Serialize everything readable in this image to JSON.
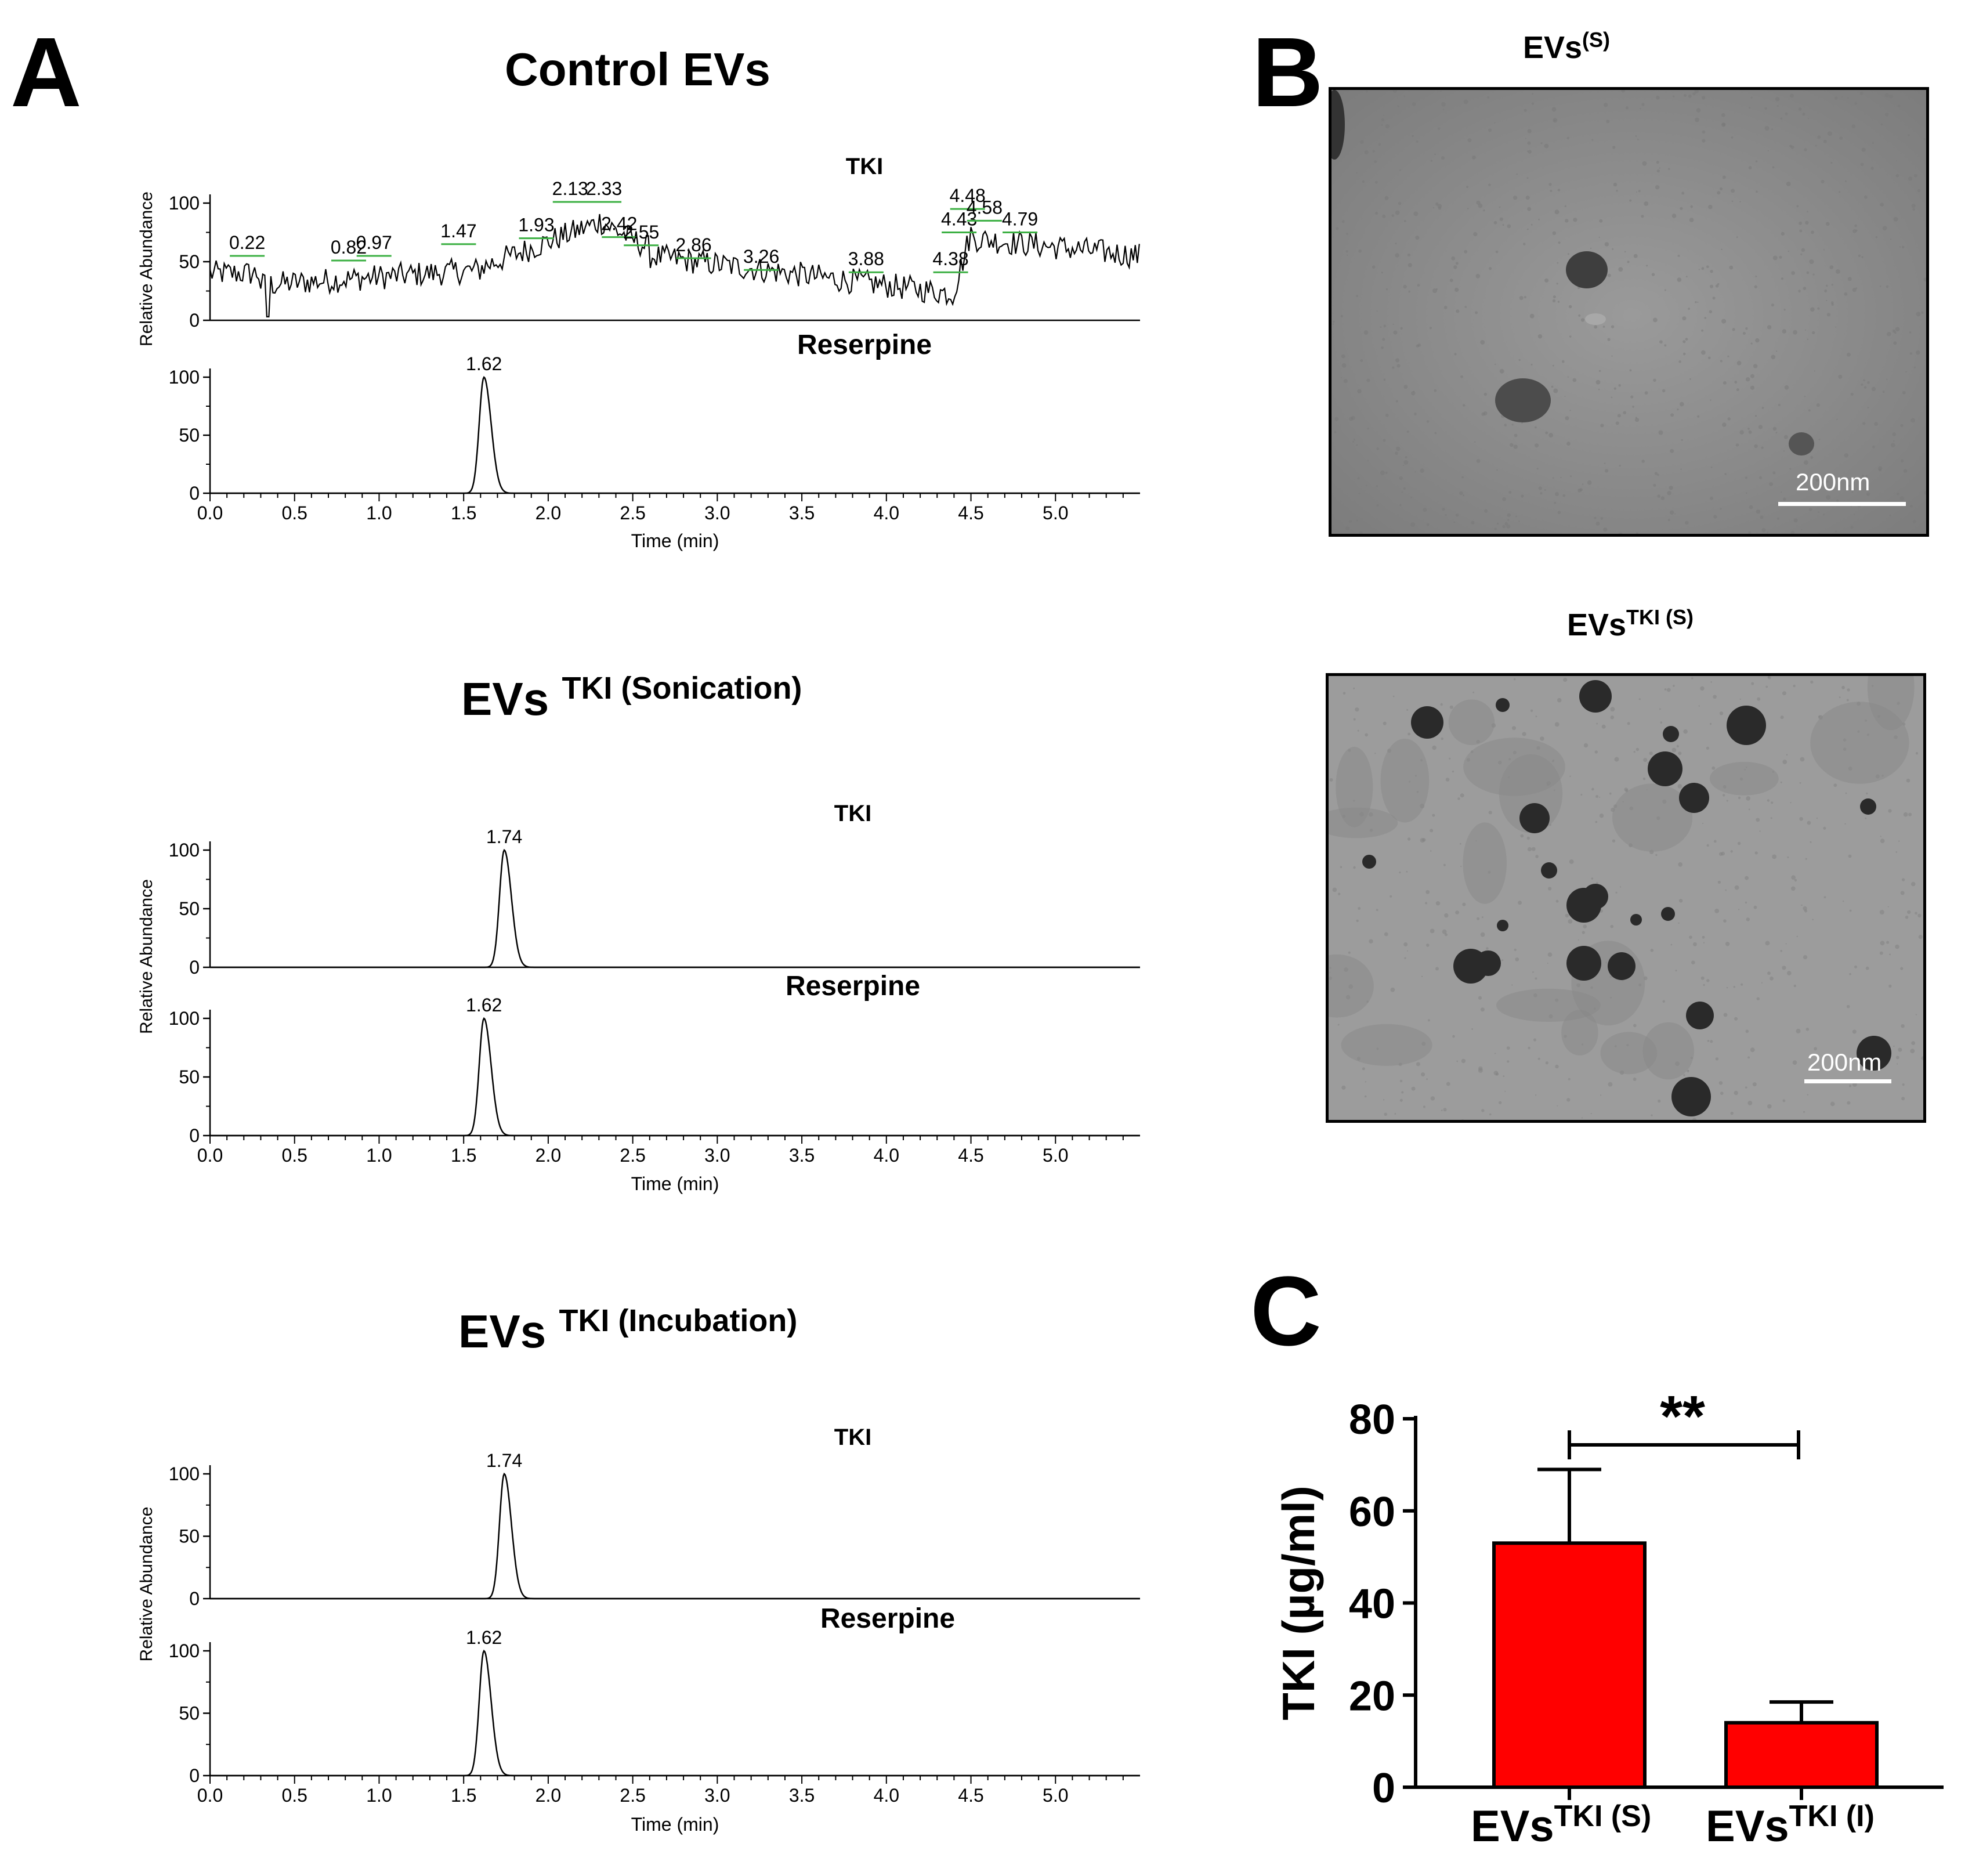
{
  "panels": {
    "a_letter": "A",
    "b_letter": "B",
    "c_letter": "C"
  },
  "panel_a": {
    "sections": [
      {
        "title": "Control EVs",
        "title_sup": "",
        "title_rest": "",
        "traces": [
          {
            "label": "TKI",
            "kind": "noisy",
            "peak_labels": [
              "0.22",
              "0.82",
              "0.97",
              "1.47",
              "1.93",
              "2.13",
              "2.33",
              "2.42",
              "2.55",
              "2.86",
              "3.26",
              "3.88",
              "4.38",
              "4.43",
              "4.48",
              "4.58",
              "4.79"
            ]
          },
          {
            "label": "Reserpine",
            "kind": "peak",
            "peak_rt": 1.62,
            "peak_label": "1.62"
          }
        ]
      },
      {
        "title": "EVs",
        "title_sup": "TKI (Sonication)",
        "traces": [
          {
            "label": "TKI",
            "kind": "peak",
            "peak_rt": 1.74,
            "peak_label": "1.74"
          },
          {
            "label": "Reserpine",
            "kind": "peak",
            "peak_rt": 1.62,
            "peak_label": "1.62"
          }
        ]
      },
      {
        "title": "EVs",
        "title_sup": "TKI (Incubation)",
        "traces": [
          {
            "label": "TKI",
            "kind": "peak",
            "peak_rt": 1.74,
            "peak_label": "1.74"
          },
          {
            "label": "Reserpine",
            "kind": "peak",
            "peak_rt": 1.62,
            "peak_label": "1.62"
          }
        ]
      }
    ],
    "y_axis_label": "Relative Abundance",
    "x_axis_label": "Time (min)",
    "x_ticks": [
      "0.0",
      "0.5",
      "1.0",
      "1.5",
      "2.0",
      "2.5",
      "3.0",
      "3.5",
      "4.0",
      "4.5",
      "5.0"
    ],
    "y_ticks": [
      "0",
      "50",
      "100"
    ],
    "x_range": [
      0,
      5.5
    ],
    "y_range": [
      0,
      100
    ]
  },
  "panel_b": {
    "image1": {
      "title": "EVs",
      "title_sup": "(S)",
      "scale_bar": "200nm"
    },
    "image2": {
      "title": "EVs",
      "title_sup": "TKI (S)",
      "scale_bar": "200nm"
    }
  },
  "chart_data": {
    "type": "bar",
    "title": "",
    "ylabel": "TKI (µg/ml)",
    "xlabel": "",
    "ylim": [
      0,
      80
    ],
    "y_ticks": [
      "0",
      "20",
      "40",
      "60",
      "80"
    ],
    "categories": [
      {
        "base": "EVs",
        "sup": "TKI (S)"
      },
      {
        "base": "EVs",
        "sup": "TKI (I)"
      }
    ],
    "values": [
      53,
      14
    ],
    "errors": [
      16,
      4.5
    ],
    "bar_color": "#ff0000",
    "significance": "**"
  }
}
